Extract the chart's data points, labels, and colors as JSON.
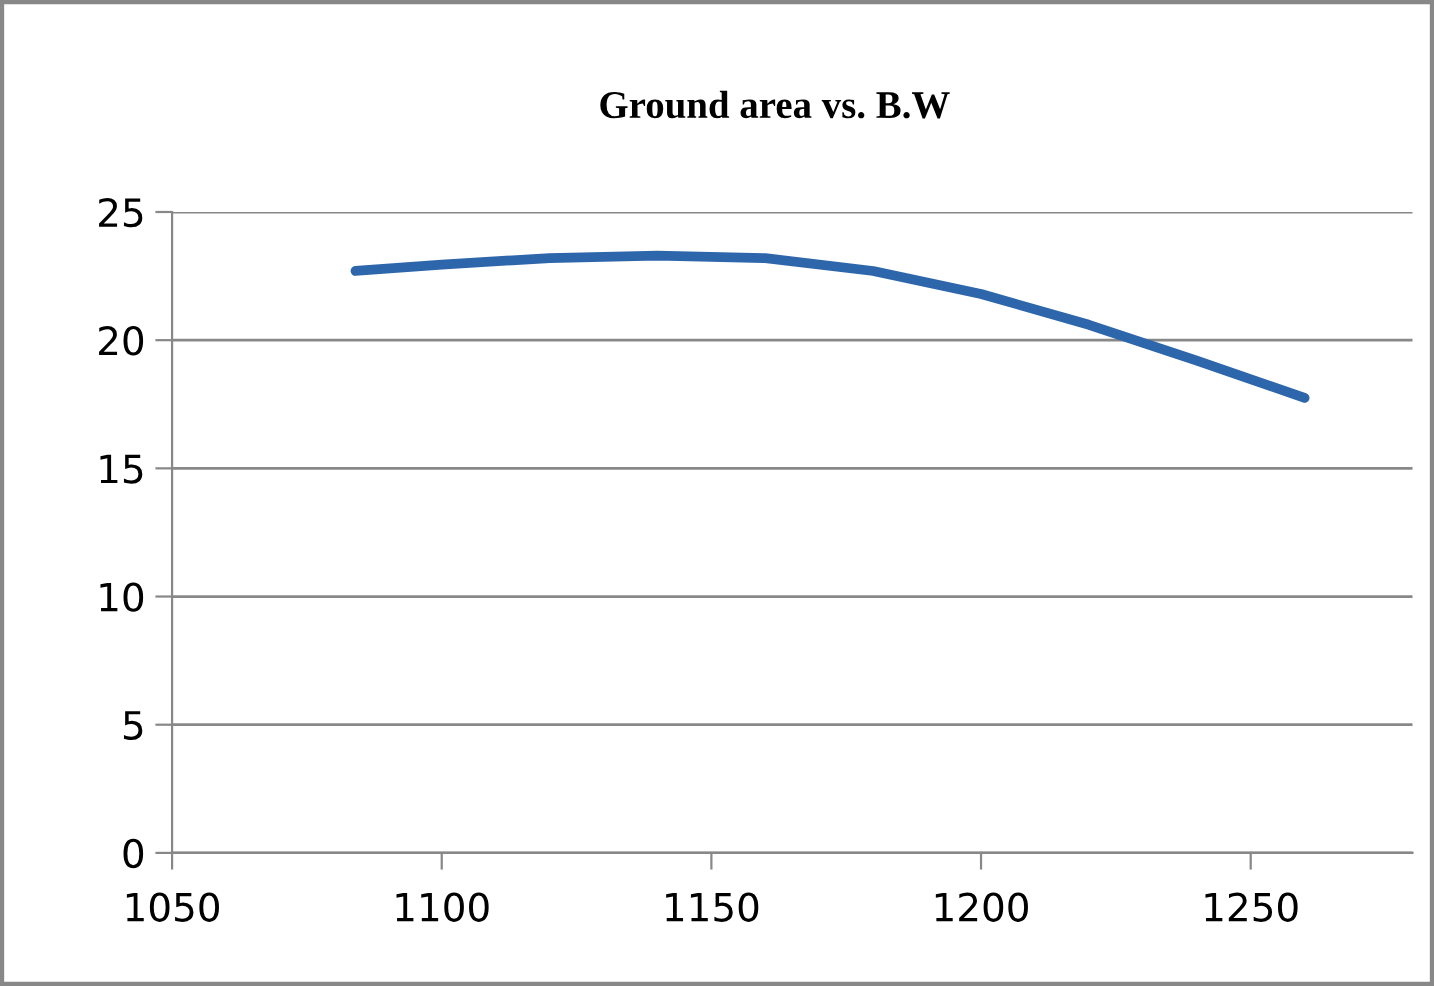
{
  "chart_data": {
    "type": "line",
    "title": "Ground area vs. B.W",
    "series": [
      {
        "color": "#2e66ac",
        "x": [
          1084,
          1100,
          1120,
          1140,
          1160,
          1180,
          1200,
          1220,
          1240,
          1260
        ],
        "values": [
          22.7,
          22.95,
          23.2,
          23.3,
          23.2,
          22.7,
          21.8,
          20.6,
          19.2,
          17.75
        ]
      }
    ],
    "xlim": [
      1050,
      1280
    ],
    "xticks": [
      1050,
      1100,
      1150,
      1200,
      1250
    ],
    "ylim": [
      0,
      25
    ],
    "yticks": [
      0,
      5,
      10,
      15,
      20,
      25
    ],
    "grid": "y",
    "marker": "none",
    "line_style": "solid"
  }
}
